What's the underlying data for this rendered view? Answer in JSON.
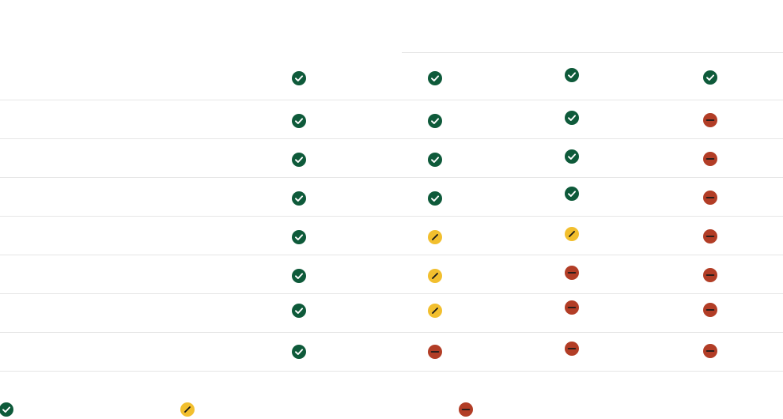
{
  "colors": {
    "yes": "#0e5a3a",
    "partial": "#f2bf2e",
    "no": "#b23d26",
    "divider": "#e6e6e6"
  },
  "icons": {
    "yes": "check-circle-icon",
    "partial": "pencil-circle-icon",
    "no": "minus-circle-icon"
  },
  "rows": [
    [
      "yes",
      "yes",
      "yes",
      "yes"
    ],
    [
      "yes",
      "yes",
      "yes",
      "no"
    ],
    [
      "yes",
      "yes",
      "yes",
      "no"
    ],
    [
      "yes",
      "yes",
      "yes",
      "no"
    ],
    [
      "yes",
      "partial",
      "partial",
      "no"
    ],
    [
      "yes",
      "partial",
      "no",
      "no"
    ],
    [
      "yes",
      "partial",
      "no",
      "no"
    ],
    [
      "yes",
      "no",
      "no",
      "no"
    ]
  ],
  "legend": [
    "yes",
    "partial",
    "no"
  ]
}
